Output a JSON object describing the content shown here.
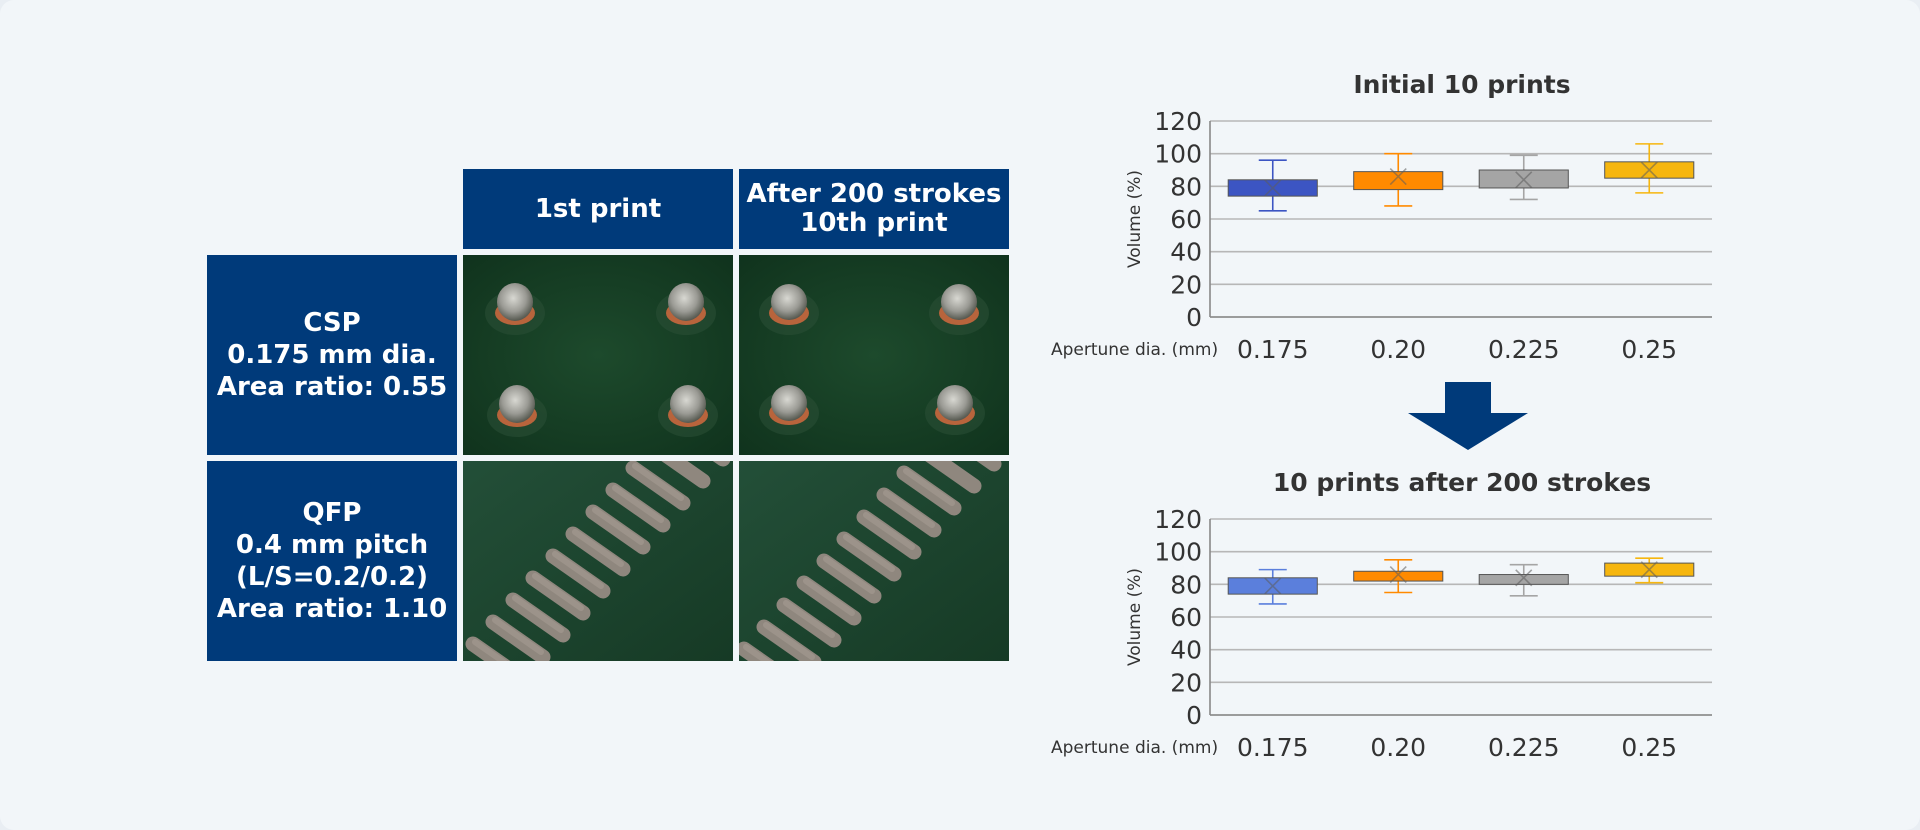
{
  "table": {
    "col_headers": [
      "1st print",
      "After 200 strokes\n10th print"
    ],
    "rows": [
      {
        "label_lines": [
          "CSP",
          "0.175 mm dia.",
          "Area ratio: 0.55"
        ]
      },
      {
        "label_lines": [
          "QFP",
          "0.4 mm pitch",
          "(L/S=0.2/0.2)",
          "Area ratio: 1.10"
        ]
      }
    ],
    "colors": {
      "header_bg": "#003a7a",
      "photo_bg": "#123c24"
    }
  },
  "chart_data": [
    {
      "type": "box",
      "title": "Initial 10 prints",
      "ylabel": "Volume (%)",
      "xlabel": "Apertune dia. (mm)",
      "categories": [
        "0.175",
        "0.20",
        "0.225",
        "0.25"
      ],
      "ylim": [
        0,
        120
      ],
      "yticks": [
        0,
        20,
        40,
        60,
        80,
        100,
        120
      ],
      "grid": true,
      "boxes": [
        {
          "min": 65,
          "q1": 74,
          "q3": 84,
          "max": 96,
          "mean": 79,
          "color": "#3c55c3"
        },
        {
          "min": 68,
          "q1": 78,
          "q3": 89,
          "max": 100,
          "mean": 86,
          "color": "#ff8a00"
        },
        {
          "min": 72,
          "q1": 79,
          "q3": 90,
          "max": 99,
          "mean": 84,
          "color": "#a5a5a5"
        },
        {
          "min": 76,
          "q1": 85,
          "q3": 95,
          "max": 106,
          "mean": 90,
          "color": "#f6b60f"
        }
      ]
    },
    {
      "type": "box",
      "title": "10 prints after 200 strokes",
      "ylabel": "Volume (%)",
      "xlabel": "Apertune dia. (mm)",
      "categories": [
        "0.175",
        "0.20",
        "0.225",
        "0.25"
      ],
      "ylim": [
        0,
        120
      ],
      "yticks": [
        0,
        20,
        40,
        60,
        80,
        100,
        120
      ],
      "grid": true,
      "boxes": [
        {
          "min": 68,
          "q1": 74,
          "q3": 84,
          "max": 89,
          "mean": 79,
          "color": "#5b7fdc"
        },
        {
          "min": 75,
          "q1": 82,
          "q3": 88,
          "max": 95,
          "mean": 86,
          "color": "#ff8a00"
        },
        {
          "min": 73,
          "q1": 80,
          "q3": 86,
          "max": 92,
          "mean": 84,
          "color": "#a5a5a5"
        },
        {
          "min": 81,
          "q1": 85,
          "q3": 93,
          "max": 96,
          "mean": 89,
          "color": "#f6b60f"
        }
      ]
    }
  ],
  "colors": {
    "arrow": "#003a7a",
    "grid": "#b7b7b7",
    "axis_text": "#333333"
  }
}
